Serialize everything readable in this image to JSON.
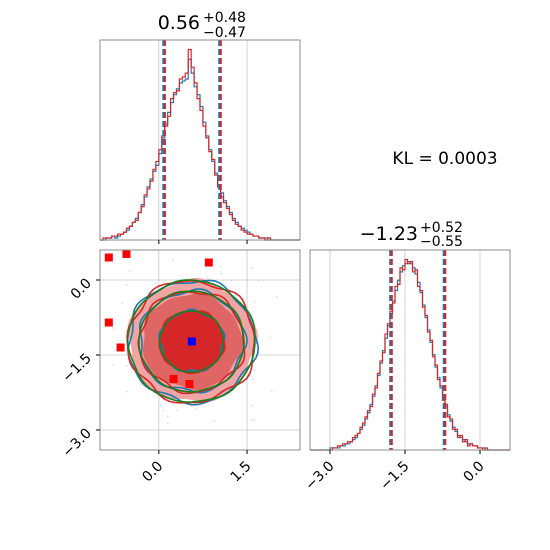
{
  "chart_data": [
    {
      "type": "histogram",
      "panel": "x1-marginal",
      "title": {
        "median": "0.56",
        "plus": "+0.48",
        "minus": "−0.47"
      },
      "x_range": [
        -1.0,
        2.4
      ],
      "x_ticks": [
        0.0,
        1.5
      ],
      "quantile_lines": [
        0.09,
        1.04
      ],
      "bin_edges_start": -1.0,
      "bin_width": 0.05,
      "series": [
        {
          "name": "blue",
          "color": "#1f77b4",
          "counts": [
            0,
            0,
            1,
            1,
            2,
            1,
            2,
            3,
            4,
            5,
            7,
            9,
            11,
            14,
            18,
            22,
            27,
            31,
            35,
            38,
            44,
            52,
            59,
            65,
            70,
            74,
            77,
            80,
            81,
            82,
            92,
            85,
            78,
            74,
            68,
            60,
            53,
            46,
            40,
            34,
            28,
            24,
            20,
            17,
            14,
            11,
            9,
            7,
            6,
            5,
            4,
            3,
            2,
            2,
            1,
            1,
            1,
            0,
            0,
            0,
            0,
            0,
            0,
            0,
            0,
            0,
            0,
            0
          ]
        },
        {
          "name": "red",
          "color": "#d62728",
          "counts": [
            0,
            1,
            1,
            1,
            2,
            2,
            3,
            3,
            4,
            6,
            7,
            9,
            10,
            14,
            17,
            23,
            26,
            30,
            36,
            40,
            46,
            53,
            58,
            63,
            72,
            75,
            76,
            82,
            83,
            85,
            97,
            88,
            80,
            72,
            66,
            58,
            52,
            45,
            41,
            33,
            27,
            22,
            19,
            16,
            13,
            10,
            8,
            7,
            5,
            4,
            3,
            3,
            2,
            2,
            1,
            1,
            0,
            1,
            0,
            0,
            0,
            0,
            0,
            0,
            0,
            0,
            0,
            0
          ]
        }
      ]
    },
    {
      "type": "histogram",
      "panel": "x2-marginal",
      "title": {
        "median": "−1.23",
        "plus": "+0.52",
        "minus": "−0.55"
      },
      "x_range": [
        -3.4,
        0.6
      ],
      "x_ticks": [
        -3.0,
        -1.5,
        0.0
      ],
      "x_tick_labels": [
        "−3.0",
        "−1.5",
        "0.0"
      ],
      "quantile_lines": [
        -1.78,
        -0.71
      ],
      "bin_edges_start": -3.4,
      "bin_width": 0.05,
      "series": [
        {
          "name": "blue",
          "color": "#1f77b4",
          "counts": [
            0,
            0,
            0,
            0,
            0,
            0,
            0,
            0,
            1,
            1,
            1,
            1,
            2,
            2,
            3,
            3,
            4,
            5,
            6,
            8,
            10,
            12,
            15,
            18,
            22,
            26,
            31,
            36,
            42,
            48,
            54,
            60,
            66,
            72,
            77,
            82,
            86,
            89,
            90,
            91,
            90,
            88,
            85,
            81,
            76,
            70,
            64,
            58,
            52,
            46,
            40,
            35,
            30,
            25,
            21,
            17,
            14,
            11,
            9,
            7,
            6,
            5,
            4,
            3,
            3,
            2,
            2,
            1,
            1,
            1,
            0,
            0,
            0,
            0,
            0,
            0,
            0,
            0,
            0,
            0
          ]
        },
        {
          "name": "red",
          "color": "#d62728",
          "counts": [
            0,
            0,
            0,
            0,
            0,
            0,
            0,
            0,
            0,
            1,
            1,
            2,
            2,
            3,
            3,
            4,
            4,
            6,
            7,
            8,
            11,
            13,
            16,
            19,
            21,
            27,
            30,
            37,
            43,
            47,
            56,
            61,
            67,
            71,
            79,
            80,
            88,
            87,
            92,
            90,
            91,
            86,
            87,
            79,
            77,
            69,
            65,
            57,
            53,
            45,
            41,
            34,
            31,
            24,
            22,
            16,
            15,
            10,
            10,
            6,
            7,
            4,
            5,
            2,
            3,
            2,
            2,
            1,
            1,
            0,
            1,
            0,
            0,
            0,
            0,
            0,
            0,
            0,
            0,
            0
          ]
        }
      ]
    },
    {
      "type": "scatter",
      "panel": "joint",
      "x_range": [
        -1.0,
        2.4
      ],
      "y_range": [
        -3.4,
        0.6
      ],
      "x_ticks": [
        0.0,
        1.5
      ],
      "y_ticks": [
        0.0,
        -1.5,
        -3.0
      ],
      "x_tick_labels": [
        "0.0",
        "1.5"
      ],
      "y_tick_labels": [
        "0.0",
        "−1.5",
        "−3.0"
      ],
      "center": {
        "x": 0.56,
        "y": -1.23,
        "color": "#0000ff"
      },
      "outliers": {
        "color": "#ff0000",
        "points": [
          [
            -0.85,
            0.45
          ],
          [
            -0.55,
            0.52
          ],
          [
            0.85,
            0.35
          ],
          [
            -0.85,
            -0.85
          ],
          [
            -0.65,
            -1.35
          ],
          [
            0.25,
            -1.98
          ],
          [
            0.52,
            -2.08
          ]
        ]
      },
      "contours": [
        {
          "name": "blue",
          "color": "#1f77b4",
          "levels_sigma": [
            1.0,
            2.0,
            2.5
          ]
        },
        {
          "name": "red",
          "color": "#d62728",
          "levels_sigma": [
            1.0,
            2.0,
            2.5
          ]
        },
        {
          "name": "green",
          "color": "#1a7f1a",
          "levels_sigma": [
            1.0,
            2.0,
            2.5
          ]
        }
      ],
      "fill_colors": [
        "#f2a5a5",
        "#e06666",
        "#d62728"
      ]
    }
  ],
  "annotation": {
    "kl_label": "KL = 0.0003"
  },
  "colors": {
    "blue": "#1f77b4",
    "red": "#d62728",
    "green": "#1a7f1a",
    "frame": "#8c8c8c",
    "grid": "#c8c8c8"
  }
}
